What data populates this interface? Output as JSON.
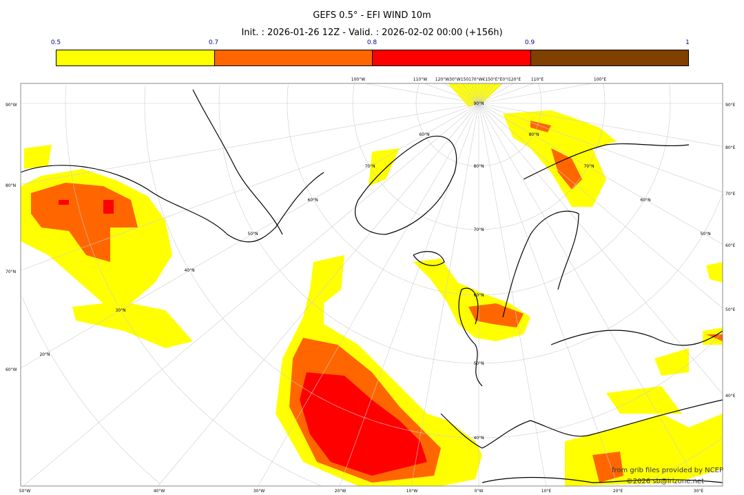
{
  "title": "GEFS 0.5° - EFI WIND 10m",
  "subtitle": "Init. : 2026-01-26 12Z - Valid. : 2026-02-02 00:00 (+156h)",
  "colorbar": {
    "ticks": [
      "0.5",
      "0.7",
      "0.8",
      "0.9",
      "1"
    ],
    "colors": [
      "#ffff00",
      "#ff6600",
      "#ff0000",
      "#804000"
    ]
  },
  "map": {
    "left_labels": [
      "90°W",
      "80°N",
      "70°N",
      "60°W"
    ],
    "right_labels": [
      "90°E",
      "80°E",
      "70°E",
      "60°E",
      "50°E",
      "40°E"
    ],
    "bottom_labels": [
      "50°W",
      "40°W",
      "30°W",
      "20°W",
      "10°W",
      "0°W",
      "10°E",
      "20°E",
      "30°E"
    ],
    "top_labels": [
      "100°W",
      "110°W",
      "120°W30°W150170°W€150°E°E0°I120°E",
      "110°E",
      "100°E"
    ],
    "interior_labels": [
      "90°N",
      "80°N",
      "70°N",
      "60°N",
      "50°N",
      "40°N",
      "70°N",
      "60°N",
      "50°N",
      "40°N",
      "30°N",
      "20°N",
      "80°N",
      "70°N",
      "60°N",
      "50°N",
      "60°N"
    ],
    "credit_line1": "from grib files provided by NCEP",
    "credit_line2": "©2026 sb@irizone.net",
    "colors": {
      "land_line": "#000000",
      "graticule": "#c8c8c8",
      "frame": "#888888"
    }
  }
}
